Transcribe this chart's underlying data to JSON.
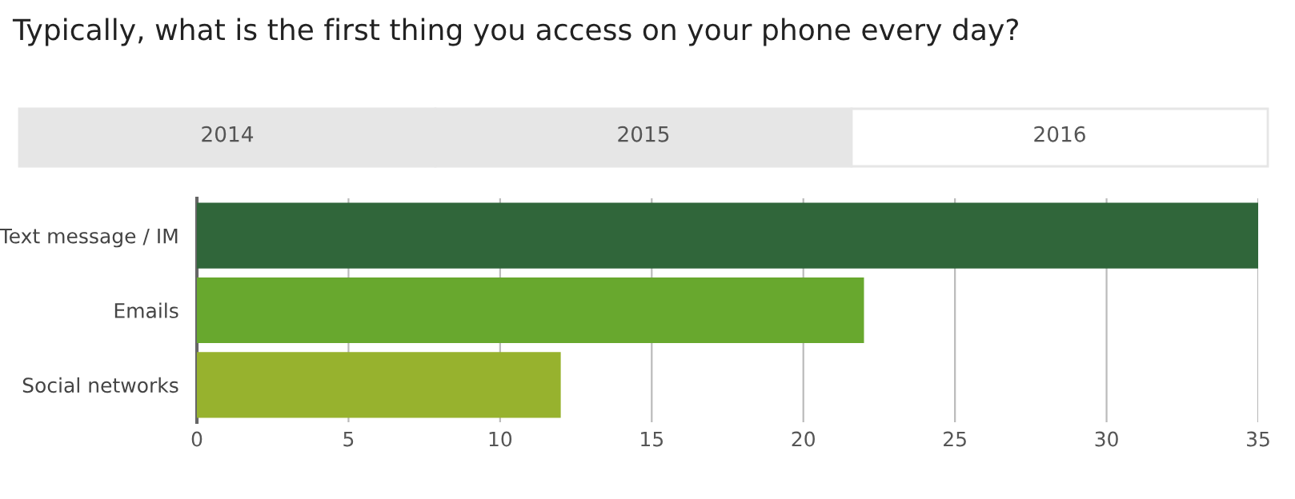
{
  "chart_data": {
    "type": "bar",
    "orientation": "horizontal",
    "title": "Typically, what is the first thing you access on your phone every day?",
    "annotations": [
      "2014",
      "2015",
      "2016"
    ],
    "categories": [
      "Text message / IM",
      "Emails",
      "Social networks"
    ],
    "values": [
      35,
      22,
      12
    ],
    "colors": [
      "#30663a",
      "#68a82e",
      "#97b22e"
    ],
    "xlim": [
      0,
      35
    ],
    "xticks": [
      0,
      5,
      10,
      15,
      20,
      25,
      30,
      35
    ],
    "grid": "x",
    "legend": false
  }
}
